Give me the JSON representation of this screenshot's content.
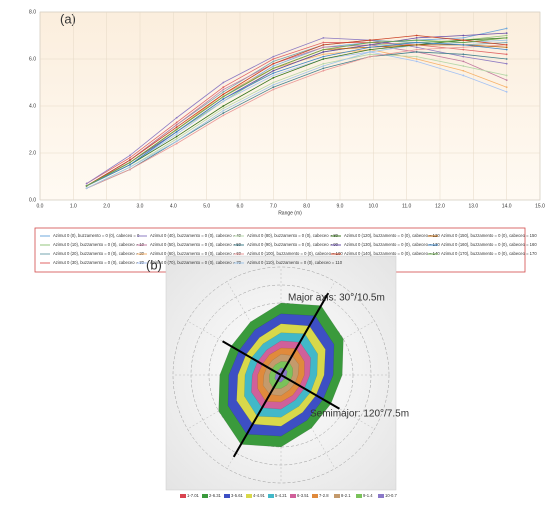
{
  "chart_data": [
    {
      "type": "line",
      "label": "(a)",
      "xlabel": "Range (m)",
      "x": [
        1.4,
        2.7,
        4.1,
        5.5,
        7.0,
        8.5,
        9.9,
        11.3,
        12.7,
        14.0
      ],
      "xlim": [
        0,
        15
      ],
      "xticks": [
        {
          "value": 0,
          "label": "0.0"
        },
        {
          "value": 1,
          "label": "1.0"
        },
        {
          "value": 2,
          "label": "2.0"
        },
        {
          "value": 3,
          "label": "3.0"
        },
        {
          "value": 4,
          "label": "4.0"
        },
        {
          "value": 5,
          "label": "5.0"
        },
        {
          "value": 6,
          "label": "6.0"
        },
        {
          "value": 7,
          "label": "7.0"
        },
        {
          "value": 8,
          "label": "8.0"
        },
        {
          "value": 9,
          "label": "9.0"
        },
        {
          "value": 10,
          "label": "10.0"
        },
        {
          "value": 11,
          "label": "11.0"
        },
        {
          "value": 12,
          "label": "12.0"
        },
        {
          "value": 13,
          "label": "13.0"
        },
        {
          "value": 14,
          "label": "14.0"
        },
        {
          "value": 15,
          "label": "15.0"
        }
      ],
      "ylim": [
        0,
        8
      ],
      "yticks": [
        {
          "value": 0,
          "label": "0.0"
        },
        {
          "value": 2,
          "label": "2.0"
        },
        {
          "value": 4,
          "label": "4.0"
        },
        {
          "value": 6,
          "label": "6.0"
        },
        {
          "value": 8,
          "label": "8.0"
        }
      ],
      "grid": true,
      "series": [
        {
          "name": "Azimut 0 (0), buzzamento = 0 (0), cabeceo = 0",
          "color": "#6fa8dc",
          "values": [
            0.6,
            1.6,
            3.0,
            4.4,
            5.7,
            6.5,
            6.7,
            6.8,
            6.9,
            7.3
          ]
        },
        {
          "name": "Azimut 0 (10), buzzamento = 0 (0), cabeceo = 10",
          "color": "#93c47d",
          "values": [
            0.6,
            1.5,
            2.9,
            4.2,
            5.5,
            6.3,
            6.6,
            6.7,
            6.8,
            7.0
          ]
        },
        {
          "name": "Azimut 0 (20), buzzamento = 0 (0), cabeceo = 20",
          "color": "#76a5af",
          "values": [
            0.6,
            1.7,
            3.2,
            4.6,
            5.9,
            6.6,
            6.8,
            6.7,
            6.6,
            6.7
          ]
        },
        {
          "name": "Azimut 0 (30), buzzamento = 0 (0), cabeceo = 30",
          "color": "#e06666",
          "values": [
            0.7,
            1.8,
            3.3,
            4.8,
            6.0,
            6.7,
            6.7,
            6.6,
            6.4,
            6.2
          ]
        },
        {
          "name": "Azimut 0 (40), buzzamento = 0 (0), cabeceo = 40",
          "color": "#8e7cc3",
          "values": [
            0.7,
            1.9,
            3.5,
            5.0,
            6.1,
            6.9,
            6.8,
            6.5,
            6.1,
            5.8
          ]
        },
        {
          "name": "Azimut 0 (50), buzzamento = 0 (0), cabeceo = 50",
          "color": "#c27ba0",
          "values": [
            0.6,
            1.7,
            3.2,
            4.7,
            5.8,
            6.5,
            6.6,
            6.3,
            5.9,
            5.1
          ]
        },
        {
          "name": "Azimut 0 (60), buzzamento = 0 (0), cabeceo = 60",
          "color": "#f6b26b",
          "values": [
            0.6,
            1.6,
            3.0,
            4.5,
            5.6,
            6.2,
            6.4,
            6.0,
            5.5,
            4.8
          ]
        },
        {
          "name": "Azimut 0 (70), buzzamento = 0 (0), cabeceo = 70",
          "color": "#a4c2f4",
          "values": [
            0.6,
            1.5,
            2.8,
            4.2,
            5.3,
            6.0,
            6.3,
            5.9,
            5.3,
            4.6
          ]
        },
        {
          "name": "Azimut 0 (80), buzzamento = 0 (0), cabeceo = 80",
          "color": "#b6d7a8",
          "values": [
            0.5,
            1.4,
            2.6,
            3.9,
            5.0,
            5.8,
            6.2,
            6.1,
            5.7,
            5.3
          ]
        },
        {
          "name": "Azimut 0 (90), buzzamento = 0 (0), cabeceo = 90",
          "color": "#45818e",
          "values": [
            0.5,
            1.3,
            2.5,
            3.7,
            4.8,
            5.6,
            6.1,
            6.3,
            6.2,
            6.0
          ]
        },
        {
          "name": "Azimut 0 (100), buzzamento = 0 (0), cabeceo = 100",
          "color": "#ea9999",
          "values": [
            0.5,
            1.3,
            2.4,
            3.6,
            4.7,
            5.5,
            6.1,
            6.4,
            6.5,
            6.6
          ]
        },
        {
          "name": "Azimut 0 (110), buzzamento = 0 (0), cabeceo = 110",
          "color": "#9fc5e8",
          "values": [
            0.5,
            1.4,
            2.5,
            3.8,
            4.9,
            5.7,
            6.3,
            6.6,
            6.7,
            6.8
          ]
        },
        {
          "name": "Azimut 0 (120), buzzamento = 0 (0), cabeceo = 120",
          "color": "#38761d",
          "values": [
            0.6,
            1.5,
            2.7,
            4.0,
            5.2,
            6.0,
            6.4,
            6.6,
            6.8,
            6.9
          ]
        },
        {
          "name": "Azimut 0 (130), buzzamento = 0 (0), cabeceo = 130",
          "color": "#674ea7",
          "values": [
            0.6,
            1.6,
            2.9,
            4.3,
            5.5,
            6.3,
            6.6,
            6.9,
            7.0,
            7.1
          ]
        },
        {
          "name": "Azimut 0 (140), buzzamento = 0 (0), cabeceo = 140",
          "color": "#cc4125",
          "values": [
            0.6,
            1.7,
            3.1,
            4.5,
            5.8,
            6.6,
            6.8,
            7.0,
            6.8,
            6.6
          ]
        },
        {
          "name": "Azimut 0 (150), buzzamento = 0 (0), cabeceo = 150",
          "color": "#b45f06",
          "values": [
            0.6,
            1.6,
            3.0,
            4.4,
            5.6,
            6.4,
            6.5,
            6.6,
            6.6,
            6.5
          ]
        },
        {
          "name": "Azimut 0 (160), buzzamento = 0 (0), cabeceo = 160",
          "color": "#3d85c6",
          "values": [
            0.6,
            1.5,
            2.9,
            4.3,
            5.4,
            6.1,
            6.5,
            6.7,
            6.6,
            6.4
          ]
        },
        {
          "name": "Azimut 0 (170), buzzamento = 0 (0), cabeceo = 170",
          "color": "#6aa84f",
          "values": [
            0.6,
            1.6,
            3.0,
            4.4,
            5.6,
            6.4,
            6.7,
            6.8,
            6.7,
            6.9
          ]
        }
      ]
    },
    {
      "type": "polar",
      "label": "(b)",
      "directions": [
        0,
        30,
        60,
        90,
        120,
        150,
        180,
        210,
        240,
        270,
        300,
        330
      ],
      "rlim": [
        0,
        12
      ],
      "rticks": [
        2,
        4,
        6,
        8,
        10,
        12
      ],
      "axes": [
        {
          "label": "Major axis: 30°/10.5m",
          "azimuth": 30,
          "range": 10.5
        },
        {
          "label": "Semimajor: 120°/7.5m",
          "azimuth": 120,
          "range": 7.5
        }
      ],
      "series": [
        {
          "name": "1-7.01",
          "color": "#d9434f",
          "values": [
            0,
            10.5,
            0,
            0,
            0,
            0,
            0,
            10.5,
            0,
            0,
            0,
            0
          ]
        },
        {
          "name": "2-6.31",
          "color": "#3a9a3c",
          "values": [
            8.0,
            8.9,
            8.0,
            6.8,
            6.4,
            6.8,
            8.0,
            8.9,
            8.0,
            6.8,
            6.4,
            6.8
          ]
        },
        {
          "name": "3-5.61",
          "color": "#3d4fc4",
          "values": [
            6.8,
            7.6,
            6.8,
            5.8,
            5.4,
            5.8,
            6.8,
            7.6,
            6.8,
            5.8,
            5.4,
            5.8
          ]
        },
        {
          "name": "4-4.91",
          "color": "#d8d84a",
          "values": [
            5.7,
            6.3,
            5.7,
            4.8,
            4.5,
            4.8,
            5.7,
            6.3,
            5.7,
            4.8,
            4.5,
            4.8
          ]
        },
        {
          "name": "5-4.21",
          "color": "#42b8c8",
          "values": [
            4.7,
            5.3,
            4.7,
            4.0,
            3.8,
            4.0,
            4.7,
            5.3,
            4.7,
            4.0,
            3.8,
            4.0
          ]
        },
        {
          "name": "6-3.51",
          "color": "#d0609a",
          "values": [
            3.8,
            4.2,
            3.8,
            3.2,
            3.0,
            3.2,
            3.8,
            4.2,
            3.8,
            3.2,
            3.0,
            3.2
          ]
        },
        {
          "name": "7-2.8",
          "color": "#e08a3c",
          "values": [
            3.0,
            3.4,
            3.0,
            2.6,
            2.4,
            2.6,
            3.0,
            3.4,
            3.0,
            2.6,
            2.4,
            2.6
          ]
        },
        {
          "name": "8-2.1",
          "color": "#c49a6c",
          "values": [
            2.3,
            2.5,
            2.3,
            1.9,
            1.8,
            1.9,
            2.3,
            2.5,
            2.3,
            1.9,
            1.8,
            1.9
          ]
        },
        {
          "name": "9-1.4",
          "color": "#7ac25a",
          "values": [
            1.5,
            1.7,
            1.5,
            1.3,
            1.2,
            1.3,
            1.5,
            1.7,
            1.5,
            1.3,
            1.2,
            1.3
          ]
        },
        {
          "name": "10-0.7",
          "color": "#8a78c8",
          "values": [
            0.8,
            0.8,
            0.8,
            0.6,
            0.6,
            0.6,
            0.8,
            0.8,
            0.8,
            0.6,
            0.6,
            0.6
          ]
        }
      ]
    }
  ]
}
